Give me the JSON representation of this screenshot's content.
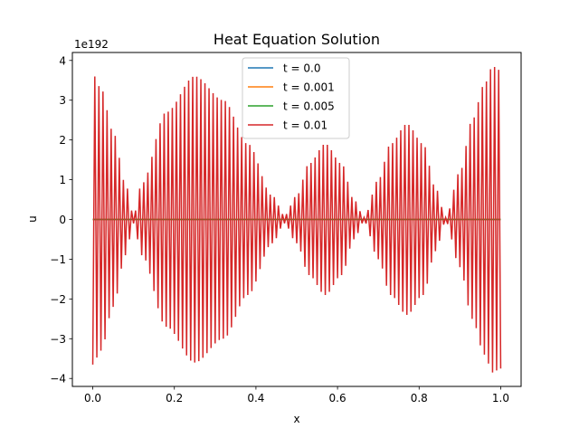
{
  "chart_data": {
    "type": "line",
    "title": "Heat Equation Solution",
    "xlabel": "x",
    "ylabel": "u",
    "y_offset_label": "1e192",
    "y_scale_exponent": 192,
    "xlim": [
      -0.05,
      1.05
    ],
    "ylim": [
      -4.2,
      4.2
    ],
    "x_ticks": [
      0.0,
      0.2,
      0.4,
      0.6,
      0.8,
      1.0
    ],
    "x_tick_labels": [
      "0.0",
      "0.2",
      "0.4",
      "0.6",
      "0.8",
      "1.0"
    ],
    "y_ticks": [
      -4,
      -3,
      -2,
      -1,
      0,
      1,
      2,
      3,
      4
    ],
    "y_tick_labels": [
      "−4",
      "−3",
      "−2",
      "−1",
      "0",
      "1",
      "2",
      "3",
      "4"
    ],
    "grid": false,
    "legend_position": "upper center",
    "series": [
      {
        "name": "t = 0.0",
        "color": "#1f77b4",
        "envelope_nodes_x": [
          0.0,
          1.0
        ],
        "envelope_nodes_y": [
          0,
          0
        ]
      },
      {
        "name": "t = 0.001",
        "color": "#ff7f0e",
        "envelope_nodes_x": [
          0.0,
          1.0
        ],
        "envelope_nodes_y": [
          0,
          0
        ]
      },
      {
        "name": "t = 0.005",
        "color": "#2ca02c",
        "envelope_nodes_x": [
          0.0,
          1.0
        ],
        "envelope_nodes_y": [
          0,
          0
        ]
      },
      {
        "name": "t = 0.01",
        "color": "#d62728",
        "oscillation_points": 200,
        "envelope_nodes_x": [
          0.0,
          0.02,
          0.05,
          0.08,
          0.1,
          0.12,
          0.18,
          0.25,
          0.32,
          0.38,
          0.44,
          0.47,
          0.5,
          0.53,
          0.57,
          0.61,
          0.64,
          0.665,
          0.7,
          0.73,
          0.77,
          0.81,
          0.84,
          0.865,
          0.9,
          0.93,
          0.96,
          0.98,
          1.0
        ],
        "envelope_nodes_y": [
          3.65,
          3.3,
          2.2,
          0.9,
          0.1,
          0.9,
          2.7,
          3.6,
          3.0,
          1.9,
          0.6,
          0.1,
          0.6,
          1.4,
          1.9,
          1.4,
          0.5,
          0.05,
          1.0,
          1.9,
          2.4,
          1.9,
          0.8,
          0.05,
          1.2,
          2.5,
          3.4,
          3.85,
          3.75
        ]
      }
    ]
  }
}
